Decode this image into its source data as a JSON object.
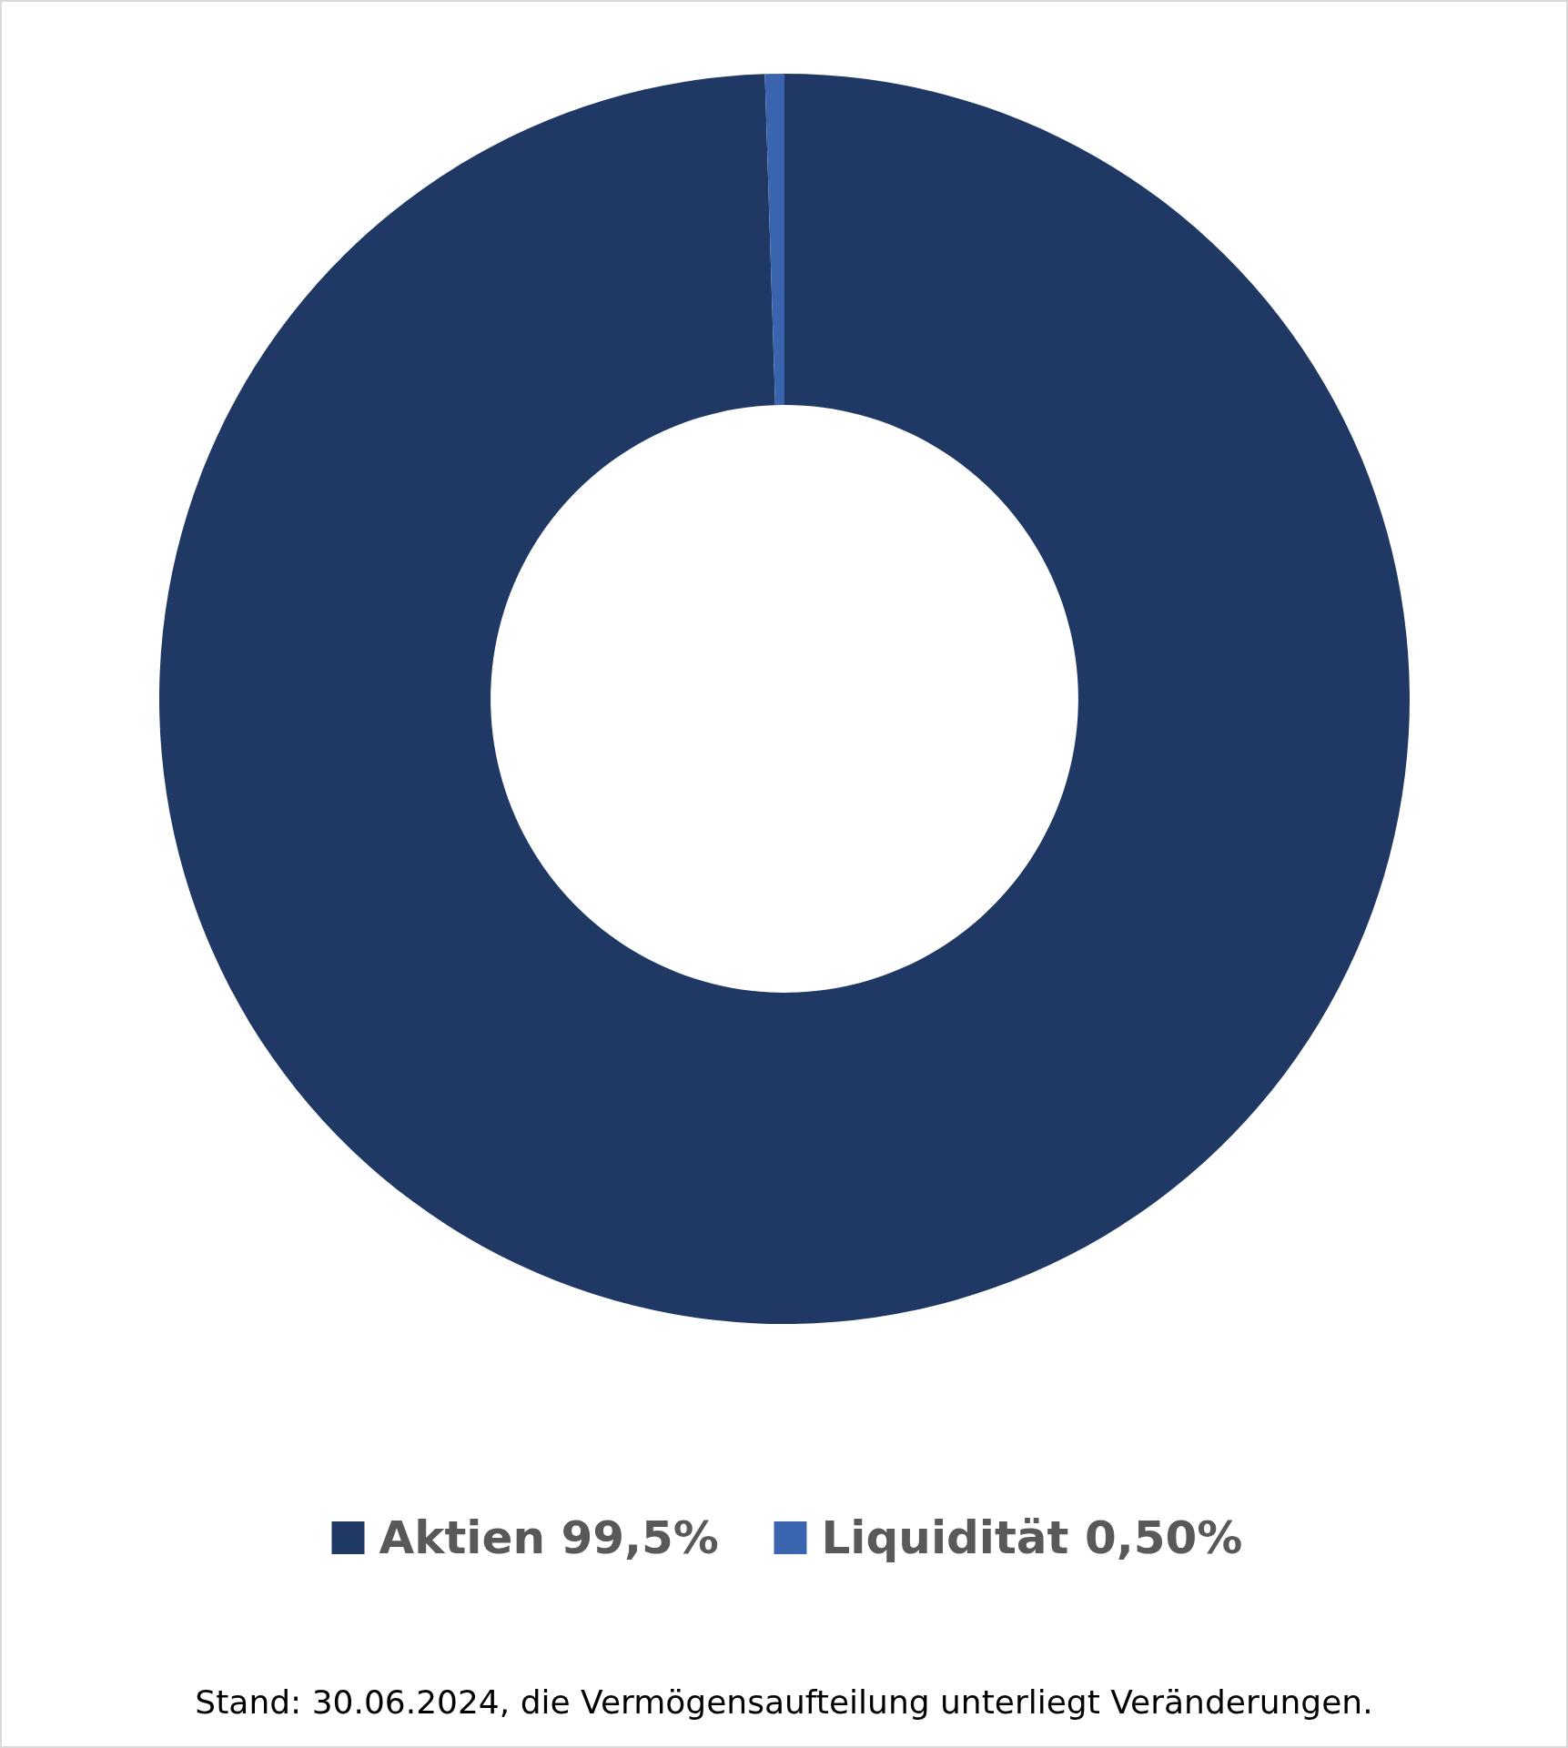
{
  "chart_data": {
    "type": "donut",
    "categories": [
      "Aktien 99,5%",
      "Liquidität 0,50%"
    ],
    "values": [
      99.5,
      0.5
    ],
    "colors": [
      "#203864",
      "#3a64ae"
    ],
    "legend": "bottom",
    "annotations": [
      "Stand: 30.06.2024, die Vermögensaufteilung unterliegt Veränderungen."
    ]
  }
}
